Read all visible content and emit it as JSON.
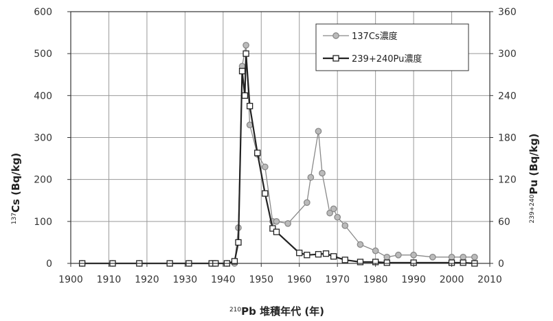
{
  "chart_data": {
    "type": "line",
    "x_ticks": [
      "1900",
      "1910",
      "1920",
      "1930",
      "1940",
      "1950",
      "1960",
      "1970",
      "1980",
      "1990",
      "2000",
      "2010"
    ],
    "y_left_ticks": [
      "0",
      "100",
      "200",
      "300",
      "400",
      "500",
      "600"
    ],
    "y_right_ticks": [
      "0",
      "60",
      "120",
      "180",
      "240",
      "300",
      "360"
    ],
    "xlim": [
      1900,
      2010
    ],
    "ylim_left": [
      0,
      600
    ],
    "ylim_right": [
      0,
      360
    ],
    "grid": true,
    "legend_position": "top-right",
    "xlabel": {
      "sup": "210",
      "main": "Pb 堆積年代 (年)"
    },
    "ylabel_left": {
      "sup": "137",
      "main": "Cs (Bq/kg)"
    },
    "ylabel_right": {
      "sup": "239+240",
      "main": "Pu (Bq/kg)"
    },
    "series": [
      {
        "name": "137Cs濃度",
        "axis": "left",
        "marker": "circle",
        "color": "#888888",
        "points": [
          [
            1903,
            0
          ],
          [
            1911,
            0
          ],
          [
            1918,
            0
          ],
          [
            1926,
            0
          ],
          [
            1931,
            0
          ],
          [
            1937,
            0
          ],
          [
            1938,
            0
          ],
          [
            1941,
            0
          ],
          [
            1943,
            0
          ],
          [
            1944,
            85
          ],
          [
            1945,
            470
          ],
          [
            1946,
            520
          ],
          [
            1947,
            330
          ],
          [
            1949,
            260
          ],
          [
            1951,
            230
          ],
          [
            1953,
            100
          ],
          [
            1954,
            100
          ],
          [
            1957,
            95
          ],
          [
            1962,
            145
          ],
          [
            1963,
            205
          ],
          [
            1965,
            315
          ],
          [
            1966,
            215
          ],
          [
            1968,
            120
          ],
          [
            1969,
            130
          ],
          [
            1970,
            110
          ],
          [
            1972,
            90
          ],
          [
            1976,
            45
          ],
          [
            1980,
            30
          ],
          [
            1983,
            15
          ],
          [
            1986,
            20
          ],
          [
            1990,
            20
          ],
          [
            1995,
            15
          ],
          [
            2000,
            15
          ],
          [
            2003,
            15
          ],
          [
            2006,
            15
          ]
        ]
      },
      {
        "name": "239+240Pu濃度",
        "axis": "right",
        "marker": "square",
        "color": "#222222",
        "points": [
          [
            1903,
            0
          ],
          [
            1911,
            0
          ],
          [
            1918,
            0
          ],
          [
            1926,
            0
          ],
          [
            1931,
            0
          ],
          [
            1937,
            0
          ],
          [
            1938,
            0
          ],
          [
            1941,
            0
          ],
          [
            1943,
            3
          ],
          [
            1944,
            30
          ],
          [
            1945,
            275
          ],
          [
            1945.7,
            240
          ],
          [
            1946,
            300
          ],
          [
            1947,
            225
          ],
          [
            1949,
            158
          ],
          [
            1951,
            100
          ],
          [
            1953,
            50
          ],
          [
            1954,
            45
          ],
          [
            1960,
            15
          ],
          [
            1962,
            12
          ],
          [
            1965,
            13
          ],
          [
            1967,
            14
          ],
          [
            1969,
            10
          ],
          [
            1972,
            5
          ],
          [
            1976,
            2
          ],
          [
            1980,
            2
          ],
          [
            1983,
            1
          ],
          [
            1990,
            1
          ],
          [
            2000,
            1
          ],
          [
            2003,
            1
          ],
          [
            2006,
            0
          ]
        ]
      }
    ]
  }
}
